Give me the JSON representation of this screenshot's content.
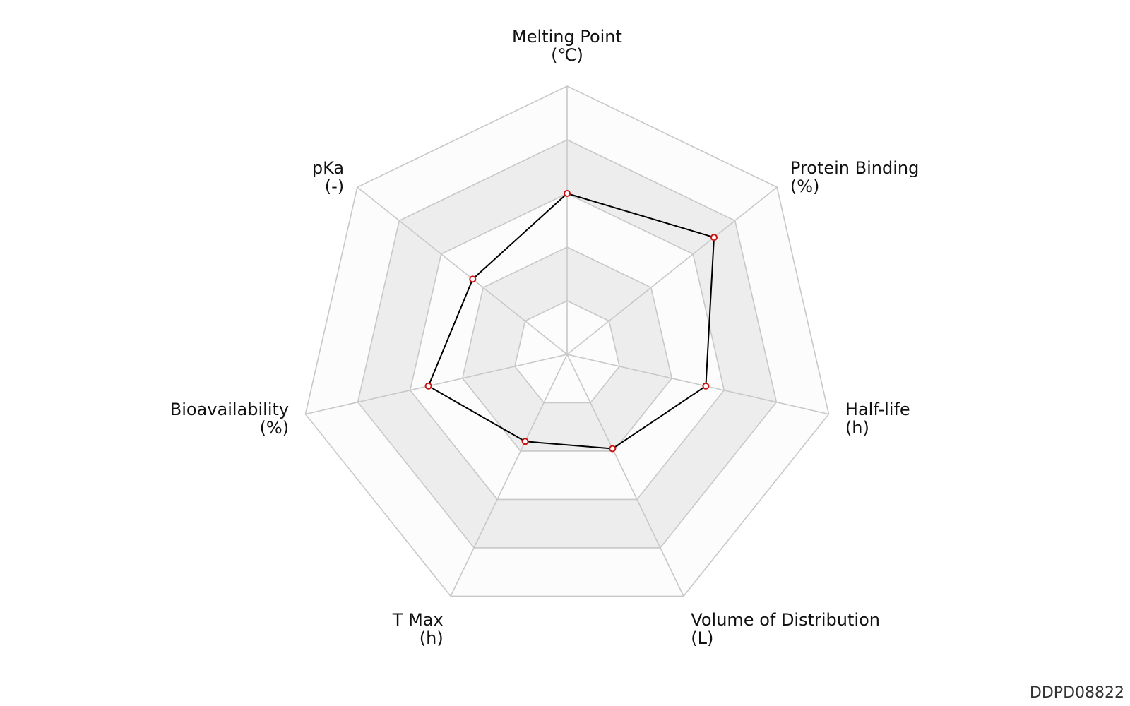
{
  "chart_data": {
    "type": "radar",
    "axes": [
      {
        "name": "Melting Point",
        "unit": "(℃)"
      },
      {
        "name": "Protein Binding",
        "unit": "(%)"
      },
      {
        "name": "Half-life",
        "unit": "(h)"
      },
      {
        "name": "Volume of Distribution",
        "unit": "(L)"
      },
      {
        "name": "T Max",
        "unit": "(h)"
      },
      {
        "name": "Bioavailability",
        "unit": "(%)"
      },
      {
        "name": "pKa",
        "unit": "(-)"
      }
    ],
    "values": [
      0.6,
      0.7,
      0.53,
      0.39,
      0.36,
      0.53,
      0.45
    ],
    "value_scale": "normalized 0-1 (outer ring = 1)",
    "rings": [
      0.2,
      0.4,
      0.6,
      0.8,
      1.0
    ],
    "colors": {
      "series_line": "#000000",
      "marker_stroke": "#cc1111",
      "marker_fill": "#ffffff",
      "grid": "#c8c8c8",
      "band_light": "#fcfcfc",
      "band_dark": "#ededed"
    }
  },
  "identifier": "DDPD08822"
}
